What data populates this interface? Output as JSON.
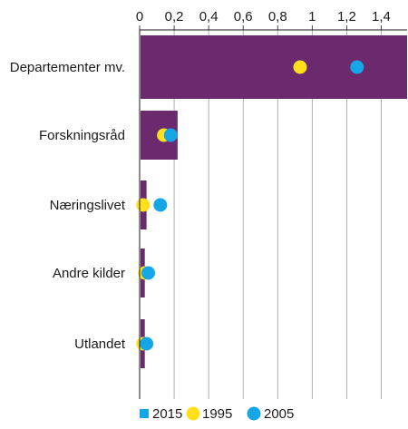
{
  "chart_data": {
    "type": "bar",
    "orientation": "horizontal",
    "title": "",
    "xlabel": "",
    "ylabel": "",
    "xlim": [
      0,
      1.55
    ],
    "xticks": [
      0,
      0.2,
      0.4,
      0.6,
      0.8,
      1.0,
      1.2,
      1.4
    ],
    "xtick_labels": [
      "0",
      "0,2",
      "0,4",
      "0,6",
      "0,8",
      "1",
      "1,2",
      "1,4"
    ],
    "x_axis_position": "top",
    "grid": "vertical",
    "categories": [
      "Departementer mv.",
      "Forskningsråd",
      "Næringslivet",
      "Andre kilder",
      "Utlandet"
    ],
    "series": [
      {
        "name": "2015",
        "kind": "bar",
        "color": "#6b2a6e",
        "values": [
          1.55,
          0.22,
          0.04,
          0.03,
          0.03
        ]
      },
      {
        "name": "1995",
        "kind": "point",
        "color": "#ffe01b",
        "values": [
          0.93,
          0.14,
          0.02,
          0.03,
          0.02
        ]
      },
      {
        "name": "2005",
        "kind": "point",
        "color": "#14a6e6",
        "values": [
          1.26,
          0.18,
          0.12,
          0.05,
          0.04
        ]
      }
    ],
    "legend": {
      "placement": "bottom"
    }
  }
}
